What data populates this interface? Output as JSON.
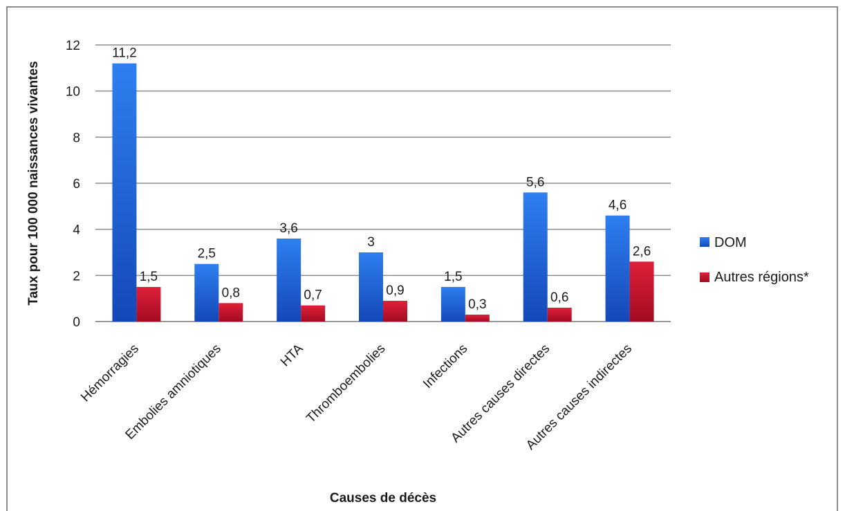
{
  "chart_data": {
    "type": "bar",
    "categories": [
      "Hémorragies",
      "Embolies amniotiques",
      "HTA",
      "Thromboembolies",
      "Infections",
      "Autres causes directes",
      "Autres causes indirectes"
    ],
    "series": [
      {
        "name": "DOM",
        "values": [
          11.2,
          2.5,
          3.6,
          3,
          1.5,
          5.6,
          4.6
        ],
        "labels": [
          "11,2",
          "2,5",
          "3,6",
          "3",
          "1,5",
          "5,6",
          "4,6"
        ],
        "color": "#1f5fd6"
      },
      {
        "name": "Autres régions*",
        "values": [
          1.5,
          0.8,
          0.7,
          0.9,
          0.3,
          0.6,
          2.6
        ],
        "labels": [
          "1,5",
          "0,8",
          "0,7",
          "0,9",
          "0,3",
          "0,6",
          "2,6"
        ],
        "color": "#c8102e"
      }
    ],
    "xlabel": "Causes de décès",
    "ylabel": "Taux pour 100 000 naissances vivantes",
    "ylim": [
      0,
      12
    ],
    "yticks": [
      0,
      2,
      4,
      6,
      8,
      10,
      12
    ],
    "grid": true,
    "legend_position": "right"
  }
}
